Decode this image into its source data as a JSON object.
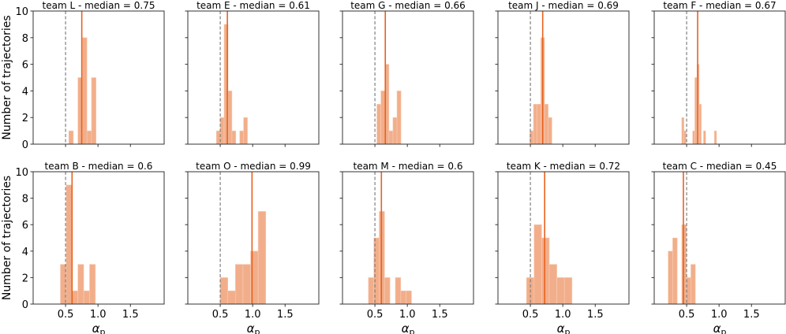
{
  "chart_data": {
    "type": "bar",
    "subtype": "histogram-small-multiples",
    "grid": false,
    "ylabel": "Number of trajectories",
    "xlabel": "α",
    "xlabel_sub": "p",
    "xlim": [
      0.0,
      2.02
    ],
    "ylim": [
      0,
      10
    ],
    "xticks": [
      "0.5",
      "1.0",
      "1.5"
    ],
    "yticks": [
      "0",
      "2",
      "4",
      "6",
      "8",
      "10"
    ],
    "reference_line": 0.5,
    "colors": {
      "bars": "#f2ae8a",
      "median_line": "#e8621f",
      "reference_line": "#808080"
    },
    "panels": [
      {
        "title": "team L - median = 0.75",
        "median": 0.75,
        "bin_start": 0.55,
        "bin_width": 0.07,
        "counts": [
          1,
          0,
          5,
          8,
          1,
          5
        ]
      },
      {
        "title": "team E - median = 0.61",
        "median": 0.61,
        "bin_start": 0.44,
        "bin_width": 0.06,
        "counts": [
          1,
          2,
          9,
          4,
          1,
          0,
          1,
          2
        ]
      },
      {
        "title": "team G - median = 0.66",
        "median": 0.66,
        "bin_start": 0.53,
        "bin_width": 0.062,
        "counts": [
          3,
          4,
          6,
          1,
          2,
          4
        ]
      },
      {
        "title": "team J - median = 0.69",
        "median": 0.69,
        "bin_start": 0.49,
        "bin_width": 0.057,
        "counts": [
          1,
          3,
          3,
          8,
          3,
          2
        ]
      },
      {
        "title": "team F - median = 0.67",
        "median": 0.67,
        "bin_start": 0.425,
        "bin_width": 0.0335,
        "counts": [
          2,
          1,
          0,
          0,
          0,
          1,
          5,
          6,
          3,
          0,
          1,
          0,
          0,
          0,
          0,
          1
        ]
      },
      {
        "title": "team B - median = 0.6",
        "median": 0.6,
        "bin_start": 0.42,
        "bin_width": 0.09,
        "counts": [
          3,
          9,
          1,
          3,
          1,
          3
        ]
      },
      {
        "title": "team O - median = 0.99",
        "median": 0.99,
        "bin_start": 0.5,
        "bin_width": 0.117,
        "counts": [
          2,
          1,
          3,
          3,
          4,
          7
        ]
      },
      {
        "title": "team M - median = 0.6",
        "median": 0.6,
        "bin_start": 0.4,
        "bin_width": 0.083,
        "counts": [
          2,
          5,
          7,
          2,
          0,
          2,
          1,
          1
        ]
      },
      {
        "title": "team K - median = 0.72",
        "median": 0.72,
        "bin_start": 0.44,
        "bin_width": 0.117,
        "counts": [
          2,
          6,
          5,
          3,
          2,
          2
        ]
      },
      {
        "title": "team C - median = 0.45",
        "median": 0.45,
        "bin_start": 0.215,
        "bin_width": 0.07,
        "counts": [
          4,
          5,
          0,
          6,
          2,
          3
        ]
      }
    ]
  }
}
